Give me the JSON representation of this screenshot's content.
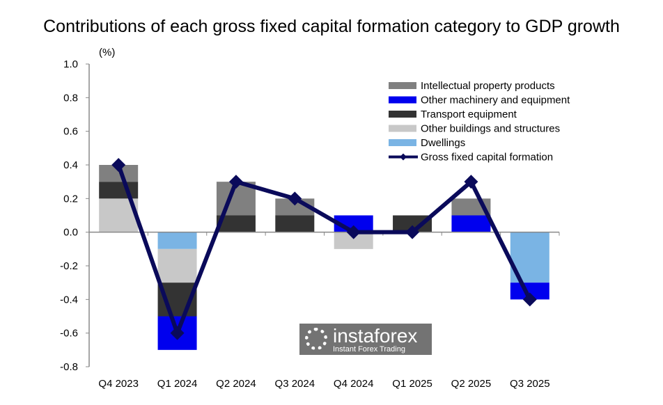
{
  "chart_data": {
    "type": "bar",
    "title": "Contributions of each gross fixed capital formation category to GDP growth",
    "ylabel": "(%)",
    "ylim": [
      -0.8,
      1.0
    ],
    "yticks": [
      "1.0",
      "0.8",
      "0.6",
      "0.4",
      "0.2",
      "0.0",
      "-0.2",
      "-0.4",
      "-0.6",
      "-0.8"
    ],
    "categories": [
      "Q4 2023",
      "Q1 2024",
      "Q2 2024",
      "Q3 2024",
      "Q4 2024",
      "Q1 2025",
      "Q2 2025",
      "Q3 2025"
    ],
    "legend_position": "top-right",
    "series": [
      {
        "name": "Intellectual property products",
        "kind": "bar",
        "color": "#808080",
        "values": [
          0.1,
          0,
          0.2,
          0.1,
          0,
          0,
          0.1,
          0
        ]
      },
      {
        "name": "Other machinery and equipment",
        "kind": "bar",
        "color": "#0000ee",
        "values": [
          0,
          -0.2,
          0,
          0,
          0.1,
          0,
          0.1,
          -0.1
        ]
      },
      {
        "name": "Transport equipment",
        "kind": "bar",
        "color": "#333333",
        "values": [
          0.1,
          -0.2,
          0.1,
          0.1,
          0,
          0.1,
          0,
          0
        ]
      },
      {
        "name": "Other buildings and structures",
        "kind": "bar",
        "color": "#c8c8c8",
        "values": [
          0.2,
          -0.2,
          0,
          0,
          -0.1,
          0,
          0,
          0
        ]
      },
      {
        "name": "Dwellings",
        "kind": "bar",
        "color": "#7ab4e4",
        "values": [
          0,
          -0.1,
          0,
          0,
          0,
          0,
          0,
          -0.3
        ]
      },
      {
        "name": "Gross fixed capital formation",
        "kind": "line",
        "color": "#0a0a5a",
        "values": [
          0.4,
          -0.6,
          0.3,
          0.2,
          0.0,
          0.0,
          0.3,
          -0.4
        ]
      }
    ]
  },
  "watermark": {
    "brand": "instaforex",
    "tagline": "Instant Forex Trading"
  }
}
